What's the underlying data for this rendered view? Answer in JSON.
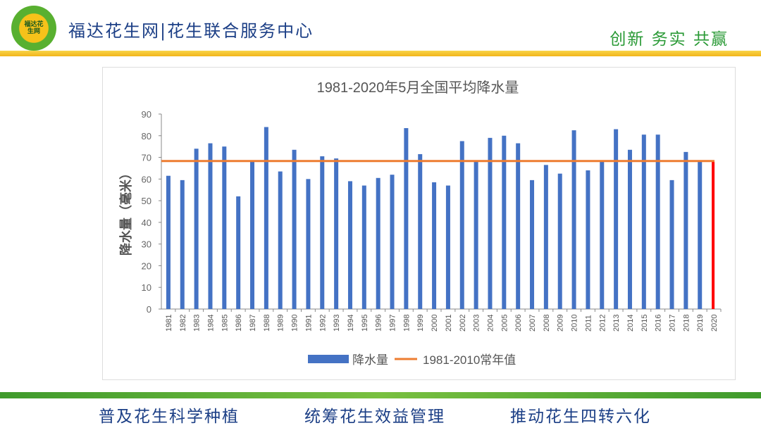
{
  "header": {
    "logo_text": "福达花生网",
    "title": "福达花生网|花生联合服务中心",
    "slogan": "创新  务实  共赢"
  },
  "footer": {
    "items": [
      "普及花生科学种植",
      "统筹花生效益管理",
      "推动花生四转六化"
    ]
  },
  "colors": {
    "bar": "#4472c4",
    "normal_line": "#ed7d31",
    "highlight": "#ff0000",
    "title": "#1c3f86",
    "slogan": "#2a9a36"
  },
  "chart_data": {
    "type": "bar",
    "title": "1981-2020年5月全国平均降水量",
    "xlabel": "",
    "ylabel": "降水量（毫米）",
    "ylim": [
      0,
      90
    ],
    "yticks": [
      0,
      10,
      20,
      30,
      40,
      50,
      60,
      70,
      80,
      90
    ],
    "categories": [
      "1981",
      "1982",
      "1983",
      "1984",
      "1985",
      "1986",
      "1987",
      "1988",
      "1989",
      "1990",
      "1991",
      "1992",
      "1993",
      "1994",
      "1995",
      "1996",
      "1997",
      "1998",
      "1999",
      "2000",
      "2001",
      "2002",
      "2003",
      "2004",
      "2005",
      "2006",
      "2007",
      "2008",
      "2009",
      "2010",
      "2011",
      "2012",
      "2013",
      "2014",
      "2015",
      "2016",
      "2017",
      "2018",
      "2019",
      "2020"
    ],
    "series": [
      {
        "name": "降水量",
        "type": "bar",
        "values": [
          61.5,
          59.5,
          74,
          76.5,
          75,
          52,
          68,
          84,
          63.5,
          73.5,
          60,
          70.5,
          69.5,
          59,
          57,
          60.5,
          62,
          83.5,
          71.5,
          58.5,
          57,
          77.5,
          68,
          79,
          80,
          76.5,
          59.5,
          66.5,
          62.5,
          82.5,
          64,
          68,
          83,
          73.5,
          80.5,
          80.5,
          59.5,
          72.5,
          68,
          68
        ]
      },
      {
        "name": "1981-2010常年值",
        "type": "line",
        "value": 68.3
      }
    ],
    "highlight_category": "2020",
    "legend": "bottom",
    "grid": false
  }
}
